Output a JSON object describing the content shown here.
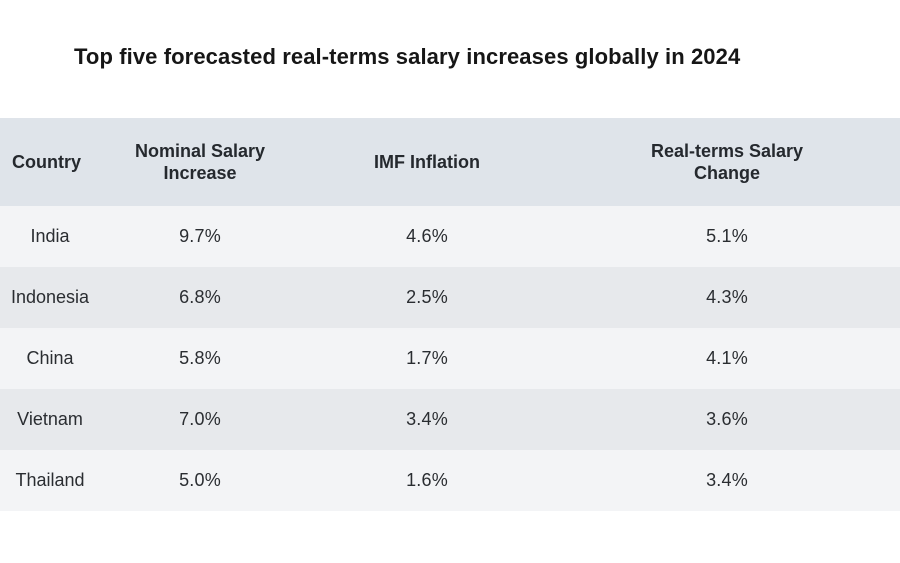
{
  "chart_data": {
    "type": "table",
    "title": "Top five forecasted real-terms salary increases globally in 2024",
    "columns": [
      "Country",
      "Nominal Salary Increase",
      "IMF Inflation",
      "Real-terms Salary Change"
    ],
    "header": {
      "country": "Country",
      "nominal_line1": "Nominal Salary",
      "nominal_line2": "Increase",
      "inflation": "IMF Inflation",
      "real_line1": "Real-terms Salary",
      "real_line2": "Change"
    },
    "rows": [
      {
        "country": "India",
        "nominal": "9.7%",
        "inflation": "4.6%",
        "real": "5.1%"
      },
      {
        "country": "Indonesia",
        "nominal": "6.8%",
        "inflation": "2.5%",
        "real": "4.3%"
      },
      {
        "country": "China",
        "nominal": "5.8%",
        "inflation": "1.7%",
        "real": "4.1%"
      },
      {
        "country": "Vietnam",
        "nominal": "7.0%",
        "inflation": "3.4%",
        "real": "3.6%"
      },
      {
        "country": "Thailand",
        "nominal": "5.0%",
        "inflation": "1.6%",
        "real": "3.4%"
      }
    ],
    "colors": {
      "header_bg": "#dfe4ea",
      "row_odd_bg": "#f3f4f6",
      "row_even_bg": "#e7e9ec"
    }
  }
}
